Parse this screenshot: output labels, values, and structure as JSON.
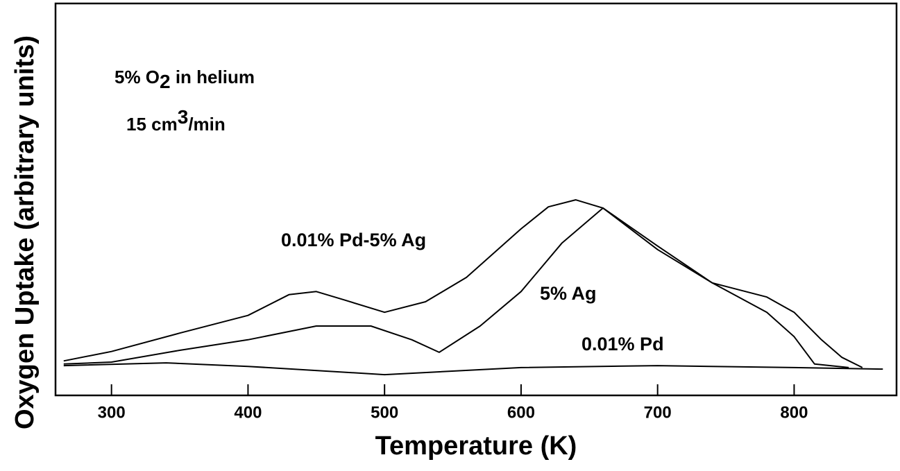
{
  "chart_data": {
    "type": "line",
    "xlabel": "Temperature (K)",
    "ylabel": "Oxygen Uptake (arbitrary units)",
    "annotations": [
      {
        "parts": [
          "5% O",
          "2",
          " in helium"
        ],
        "script": "sub"
      },
      {
        "parts": [
          "15 cm",
          "3",
          "/min"
        ],
        "script": "super"
      }
    ],
    "xlim": [
      259,
      875
    ],
    "xticks": [
      300,
      400,
      500,
      600,
      700,
      800
    ],
    "ylim": [
      0,
      100
    ],
    "series": [
      {
        "name": "0.01% Pd-5% Ag",
        "color": "#000000",
        "x": [
          265,
          300,
          350,
          400,
          430,
          450,
          470,
          500,
          530,
          560,
          600,
          620,
          640,
          660,
          700,
          740,
          780,
          800,
          820,
          835,
          850
        ],
        "values": [
          8.8,
          11.2,
          15.9,
          20.4,
          25.7,
          26.5,
          24.4,
          21.2,
          23.9,
          30.1,
          42.5,
          48.1,
          49.9,
          47.8,
          37.2,
          28.7,
          25.1,
          21.2,
          14.2,
          9.7,
          7.1
        ]
      },
      {
        "name": "5% Ag",
        "color": "#000000",
        "x": [
          265,
          300,
          350,
          400,
          450,
          490,
          520,
          540,
          570,
          600,
          630,
          660,
          700,
          740,
          780,
          800,
          815,
          840
        ],
        "values": [
          8.0,
          8.5,
          11.5,
          14.2,
          17.7,
          17.7,
          14.2,
          11.0,
          17.7,
          26.5,
          38.9,
          47.8,
          38.1,
          28.7,
          21.2,
          15.0,
          8.0,
          7.1
        ]
      },
      {
        "name": "0.01% Pd",
        "color": "#000000",
        "x": [
          265,
          340,
          400,
          500,
          600,
          700,
          800,
          865
        ],
        "values": [
          7.6,
          8.3,
          7.4,
          5.3,
          7.1,
          7.6,
          7.1,
          6.7
        ]
      }
    ]
  }
}
